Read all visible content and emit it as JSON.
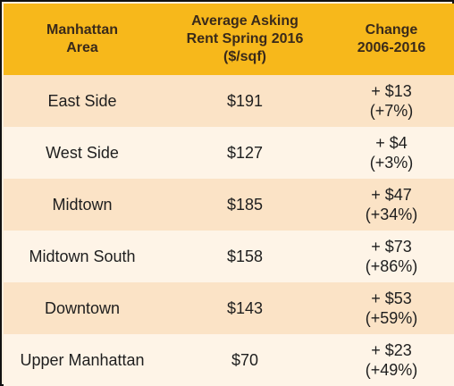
{
  "table": {
    "headers": [
      "Manhattan\nArea",
      "Average Asking\nRent Spring 2016\n($/sqf)",
      "Change\n2006-2016"
    ],
    "rows": [
      {
        "area": "East Side",
        "rent": "$191",
        "change": "+ $13\n(+7%)"
      },
      {
        "area": "West Side",
        "rent": "$127",
        "change": "+ $4\n(+3%)"
      },
      {
        "area": "Midtown",
        "rent": "$185",
        "change": "+ $47\n(+34%)"
      },
      {
        "area": "Midtown South",
        "rent": "$158",
        "change": "+ $73\n(+86%)"
      },
      {
        "area": "Downtown",
        "rent": "$143",
        "change": "+ $53\n(+59%)"
      },
      {
        "area": "Upper Manhattan",
        "rent": "$70",
        "change": "+ $23\n(+49%)"
      }
    ]
  },
  "colors": {
    "header_bg": "#f7b81b",
    "row_odd": "#fbe3c6",
    "row_even": "#fef4e7"
  }
}
